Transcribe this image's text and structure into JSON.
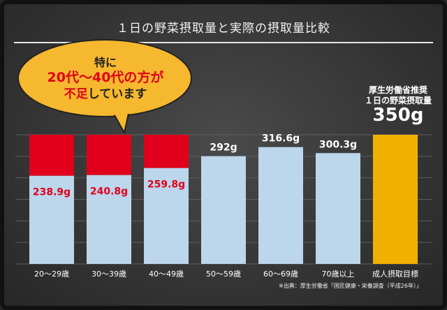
{
  "chart_data": {
    "type": "bar",
    "title": "１日の野菜摂取量と実際の摂取量比較",
    "source": "※出典：厚生労働省「国民健康・栄養調査（平成26年）」",
    "categories": [
      "20～29歳",
      "30～39歳",
      "40～49歳",
      "50～59歳",
      "60～69歳",
      "70歳以上",
      "成人摂取目標"
    ],
    "values": [
      238.9,
      240.8,
      259.8,
      292,
      316.6,
      300.3,
      350
    ],
    "value_labels": [
      "238.9g",
      "240.8g",
      "259.8g",
      "292g",
      "316.6g",
      "300.3g",
      ""
    ],
    "target": 350,
    "shortfall_highlight": [
      "20～29歳",
      "30～39歳",
      "40～49歳"
    ],
    "ylim": [
      0,
      350
    ],
    "xlabel": "",
    "ylabel": "",
    "grid": true,
    "colors": {
      "actual": "#bcd6ec",
      "shortfall": "#e0001b",
      "target": "#f2b100",
      "label_light": "#ffffff",
      "label_red": "#e0001b"
    }
  },
  "callout": {
    "line1": "特に",
    "line2": "20代～40代の方が",
    "line3_red": "不足",
    "line3_black": "しています"
  },
  "recommended": {
    "line1": "厚生労働省推奨",
    "line2": "１日の野菜摂取量",
    "value": "350g"
  }
}
